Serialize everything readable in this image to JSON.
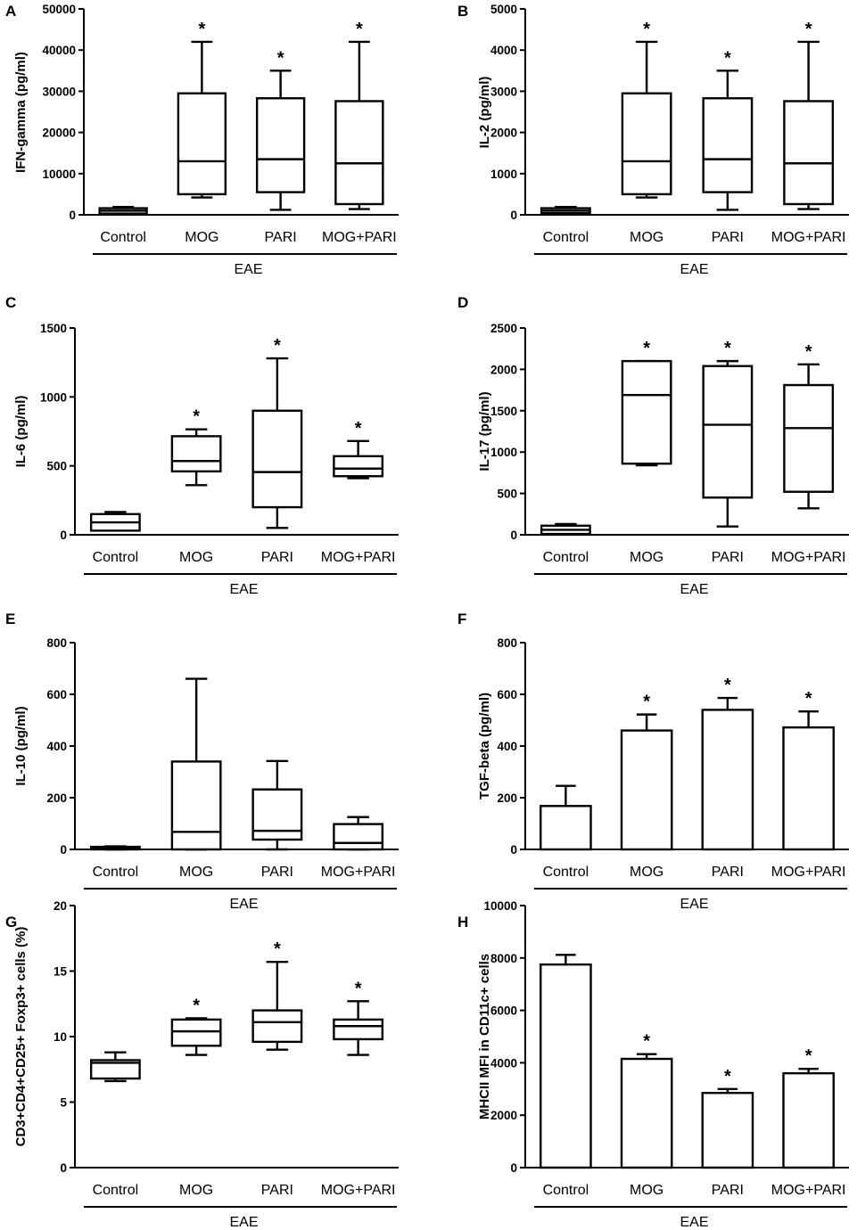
{
  "chart_data": [
    {
      "panel": "A",
      "type": "box",
      "ylabel": "IFN-gamma (pg/ml)",
      "ylim": [
        0,
        50000
      ],
      "yticks": [
        0,
        10000,
        20000,
        30000,
        40000,
        50000
      ],
      "categories": [
        "Control",
        "MOG",
        "PARI",
        "MOG+PARI"
      ],
      "group_label": "EAE",
      "series": [
        {
          "name": "Control",
          "min": 300,
          "q1": 300,
          "median": 1000,
          "q3": 1600,
          "max": 1900,
          "significant": false
        },
        {
          "name": "MOG",
          "min": 4200,
          "q1": 5000,
          "median": 13000,
          "q3": 29500,
          "max": 42000,
          "significant": true
        },
        {
          "name": "PARI",
          "min": 1200,
          "q1": 5500,
          "median": 13500,
          "q3": 28300,
          "max": 35000,
          "significant": true
        },
        {
          "name": "MOG+PARI",
          "min": 1400,
          "q1": 2600,
          "median": 12500,
          "q3": 27600,
          "max": 42000,
          "significant": true
        }
      ]
    },
    {
      "panel": "B",
      "type": "box",
      "ylabel": "IL-2 (pg/ml)",
      "ylim": [
        0,
        5000
      ],
      "yticks": [
        0,
        1000,
        2000,
        3000,
        4000,
        5000
      ],
      "categories": [
        "Control",
        "MOG",
        "PARI",
        "MOG+PARI"
      ],
      "group_label": "EAE",
      "series": [
        {
          "name": "Control",
          "min": 40,
          "q1": 40,
          "median": 100,
          "q3": 160,
          "max": 190,
          "significant": false
        },
        {
          "name": "MOG",
          "min": 420,
          "q1": 500,
          "median": 1300,
          "q3": 2950,
          "max": 4200,
          "significant": true
        },
        {
          "name": "PARI",
          "min": 120,
          "q1": 550,
          "median": 1350,
          "q3": 2830,
          "max": 3500,
          "significant": true
        },
        {
          "name": "MOG+PARI",
          "min": 140,
          "q1": 260,
          "median": 1250,
          "q3": 2760,
          "max": 4200,
          "significant": true
        }
      ]
    },
    {
      "panel": "C",
      "type": "box",
      "ylabel": "IL-6 (pg/ml)",
      "ylim": [
        0,
        1500
      ],
      "yticks": [
        0,
        500,
        1000,
        1500
      ],
      "categories": [
        "Control",
        "MOG",
        "PARI",
        "MOG+PARI"
      ],
      "group_label": "EAE",
      "series": [
        {
          "name": "Control",
          "min": 30,
          "q1": 30,
          "median": 90,
          "q3": 150,
          "max": 165,
          "significant": false
        },
        {
          "name": "MOG",
          "min": 360,
          "q1": 460,
          "median": 535,
          "q3": 715,
          "max": 765,
          "significant": true
        },
        {
          "name": "PARI",
          "min": 50,
          "q1": 200,
          "median": 455,
          "q3": 900,
          "max": 1280,
          "significant": true
        },
        {
          "name": "MOG+PARI",
          "min": 410,
          "q1": 425,
          "median": 480,
          "q3": 570,
          "max": 680,
          "significant": true
        }
      ]
    },
    {
      "panel": "D",
      "type": "box",
      "ylabel": "IL-17 (pg/ml)",
      "ylim": [
        0,
        2500
      ],
      "yticks": [
        0,
        500,
        1000,
        1500,
        2000,
        2500
      ],
      "categories": [
        "Control",
        "MOG",
        "PARI",
        "MOG+PARI"
      ],
      "group_label": "EAE",
      "series": [
        {
          "name": "Control",
          "min": 10,
          "q1": 10,
          "median": 60,
          "q3": 110,
          "max": 130,
          "significant": false
        },
        {
          "name": "MOG",
          "min": 840,
          "q1": 860,
          "median": 1690,
          "q3": 2100,
          "max": 2100,
          "significant": true
        },
        {
          "name": "PARI",
          "min": 100,
          "q1": 450,
          "median": 1330,
          "q3": 2040,
          "max": 2100,
          "significant": true
        },
        {
          "name": "MOG+PARI",
          "min": 320,
          "q1": 520,
          "median": 1290,
          "q3": 1810,
          "max": 2060,
          "significant": true
        }
      ]
    },
    {
      "panel": "E",
      "type": "box",
      "ylabel": "IL-10 (pg/ml)",
      "ylim": [
        0,
        800
      ],
      "yticks": [
        0,
        200,
        400,
        600,
        800
      ],
      "categories": [
        "Control",
        "MOG",
        "PARI",
        "MOG+PARI"
      ],
      "group_label": "EAE",
      "series": [
        {
          "name": "Control",
          "min": 0,
          "q1": 0,
          "median": 5,
          "q3": 10,
          "max": 12,
          "significant": false
        },
        {
          "name": "MOG",
          "min": 0,
          "q1": 0,
          "median": 68,
          "q3": 340,
          "max": 660,
          "significant": false
        },
        {
          "name": "PARI",
          "min": 0,
          "q1": 38,
          "median": 72,
          "q3": 232,
          "max": 342,
          "significant": false
        },
        {
          "name": "MOG+PARI",
          "min": 0,
          "q1": 0,
          "median": 25,
          "q3": 98,
          "max": 125,
          "significant": false
        }
      ]
    },
    {
      "panel": "F",
      "type": "bar",
      "ylabel": "TGF-beta (pg/ml)",
      "ylim": [
        0,
        800
      ],
      "yticks": [
        0,
        200,
        400,
        600,
        800
      ],
      "categories": [
        "Control",
        "MOG",
        "PARI",
        "MOG+PARI"
      ],
      "group_label": "EAE",
      "values": [
        168,
        460,
        540,
        472
      ],
      "errors": [
        78,
        62,
        46,
        62
      ],
      "significant": [
        false,
        true,
        true,
        true
      ]
    },
    {
      "panel": "G",
      "type": "box",
      "ylabel": "CD3+CD4+CD25+ Foxp3+ cells (%)",
      "ylim": [
        0,
        20
      ],
      "yticks": [
        0,
        5,
        10,
        15,
        20
      ],
      "categories": [
        "Control",
        "MOG",
        "PARI",
        "MOG+PARI"
      ],
      "group_label": "EAE",
      "series": [
        {
          "name": "Control",
          "min": 6.6,
          "q1": 6.8,
          "median": 8.0,
          "q3": 8.2,
          "max": 8.8,
          "significant": false
        },
        {
          "name": "MOG",
          "min": 8.6,
          "q1": 9.3,
          "median": 10.4,
          "q3": 11.3,
          "max": 11.4,
          "significant": true
        },
        {
          "name": "PARI",
          "min": 9.0,
          "q1": 9.6,
          "median": 11.1,
          "q3": 12.0,
          "max": 15.7,
          "significant": true
        },
        {
          "name": "MOG+PARI",
          "min": 8.6,
          "q1": 9.8,
          "median": 10.8,
          "q3": 11.3,
          "max": 12.7,
          "significant": true
        }
      ]
    },
    {
      "panel": "H",
      "type": "bar",
      "ylabel": "MHCII MFI in CD11c+ cells",
      "ylim": [
        0,
        10000
      ],
      "yticks": [
        0,
        2000,
        4000,
        6000,
        8000,
        10000
      ],
      "categories": [
        "Control",
        "MOG",
        "PARI",
        "MOG+PARI"
      ],
      "group_label": "EAE",
      "values": [
        7750,
        4150,
        2850,
        3600
      ],
      "errors": [
        370,
        180,
        150,
        170
      ],
      "significant": [
        false,
        true,
        true,
        true
      ]
    }
  ],
  "significance_marker": "*"
}
